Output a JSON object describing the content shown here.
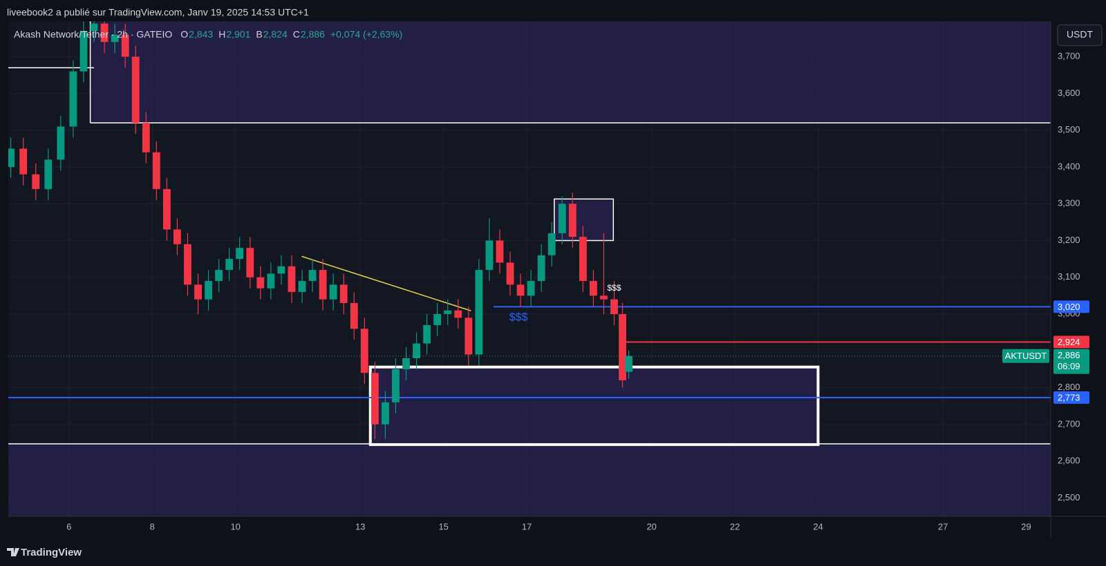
{
  "publisher": "liveebook2 a publié sur TradingView.com, Janv 19, 2025 14:53 UTC+1",
  "footer": "TradingView",
  "currency_button": "USDT",
  "chart_data": {
    "type": "candlestick",
    "title": "Akash Network/Tether · 2h · GATEIO",
    "ohlc": [
      {
        "label": "O",
        "value": "2,843"
      },
      {
        "label": "H",
        "value": "2,901"
      },
      {
        "label": "B",
        "value": "2,824"
      },
      {
        "label": "C",
        "value": "2,886"
      }
    ],
    "change": "+0,074 (+2,63%)",
    "up_color": "#089981",
    "down_color": "#f23645",
    "x": [
      4.6,
      4.9,
      5.2,
      5.5,
      5.8,
      6.1,
      6.35,
      6.6,
      6.85,
      7.1,
      7.35,
      7.6,
      7.85,
      8.1,
      8.35,
      8.6,
      8.85,
      9.1,
      9.35,
      9.6,
      9.85,
      10.1,
      10.35,
      10.6,
      10.85,
      11.1,
      11.35,
      11.6,
      11.85,
      12.1,
      12.35,
      12.6,
      12.85,
      13.1,
      13.35,
      13.6,
      13.85,
      14.1,
      14.35,
      14.6,
      14.85,
      15.1,
      15.35,
      15.6,
      15.85,
      16.1,
      16.35,
      16.6,
      16.85,
      17.1,
      17.35,
      17.6,
      17.85,
      18.1,
      18.35,
      18.6,
      18.85,
      19.1,
      19.3,
      19.45
    ],
    "open": [
      3.4,
      3.45,
      3.38,
      3.34,
      3.42,
      3.51,
      3.66,
      3.77,
      3.79,
      3.74,
      3.76,
      3.7,
      3.52,
      3.44,
      3.34,
      3.23,
      3.19,
      3.08,
      3.04,
      3.09,
      3.12,
      3.15,
      3.18,
      3.1,
      3.07,
      3.11,
      3.13,
      3.06,
      3.09,
      3.12,
      3.04,
      3.08,
      3.03,
      2.96,
      2.84,
      2.7,
      2.76,
      2.85,
      2.88,
      2.92,
      2.97,
      3.0,
      3.01,
      2.99,
      2.89,
      3.12,
      3.2,
      3.14,
      3.08,
      3.05,
      3.09,
      3.16,
      3.22,
      3.3,
      3.21,
      3.09,
      3.05,
      3.04,
      3.0,
      2.843
    ],
    "high": [
      3.48,
      3.48,
      3.41,
      3.45,
      3.54,
      3.69,
      3.8,
      3.82,
      3.82,
      3.79,
      3.79,
      3.73,
      3.55,
      3.47,
      3.37,
      3.26,
      3.22,
      3.11,
      3.12,
      3.15,
      3.18,
      3.21,
      3.21,
      3.13,
      3.14,
      3.16,
      3.16,
      3.12,
      3.15,
      3.15,
      3.11,
      3.11,
      3.06,
      2.99,
      2.87,
      2.79,
      2.88,
      2.91,
      2.95,
      3.0,
      3.03,
      3.04,
      3.04,
      3.02,
      3.15,
      3.26,
      3.23,
      3.17,
      3.11,
      3.12,
      3.19,
      3.25,
      3.32,
      3.33,
      3.24,
      3.12,
      3.22,
      3.09,
      3.03,
      2.901
    ],
    "low": [
      3.37,
      3.35,
      3.31,
      3.31,
      3.39,
      3.48,
      3.63,
      3.74,
      3.71,
      3.71,
      3.67,
      3.49,
      3.41,
      3.31,
      3.2,
      3.16,
      3.05,
      3.0,
      3.01,
      3.06,
      3.09,
      3.12,
      3.07,
      3.04,
      3.04,
      3.08,
      3.03,
      3.03,
      3.06,
      3.01,
      3.01,
      3.0,
      2.93,
      2.81,
      2.66,
      2.66,
      2.73,
      2.82,
      2.85,
      2.89,
      2.94,
      2.97,
      2.96,
      2.86,
      2.86,
      3.09,
      3.11,
      3.05,
      3.02,
      3.02,
      3.06,
      3.13,
      3.19,
      3.18,
      3.06,
      3.02,
      3.0,
      2.97,
      2.8,
      2.824
    ],
    "close": [
      3.45,
      3.38,
      3.34,
      3.42,
      3.51,
      3.66,
      3.77,
      3.79,
      3.74,
      3.76,
      3.7,
      3.52,
      3.44,
      3.34,
      3.23,
      3.19,
      3.08,
      3.04,
      3.09,
      3.12,
      3.15,
      3.18,
      3.1,
      3.07,
      3.11,
      3.13,
      3.06,
      3.09,
      3.12,
      3.04,
      3.08,
      3.03,
      2.96,
      2.84,
      2.7,
      2.76,
      2.85,
      2.88,
      2.92,
      2.97,
      3.0,
      3.01,
      2.99,
      2.89,
      3.12,
      3.2,
      3.14,
      3.08,
      3.05,
      3.09,
      3.16,
      3.22,
      3.3,
      3.21,
      3.09,
      3.05,
      3.04,
      3.0,
      2.82,
      2.886
    ],
    "xlim": [
      4.54,
      29.59
    ],
    "xticks": [
      6,
      8,
      10,
      13,
      15,
      17,
      20,
      22,
      24,
      27,
      29
    ],
    "ylim": [
      2.45,
      3.796
    ],
    "yticks": [
      {
        "value": 2.5,
        "label": "2,500"
      },
      {
        "value": 2.6,
        "label": "2,600"
      },
      {
        "value": 2.7,
        "label": "2,700"
      },
      {
        "value": 2.8,
        "label": "2,800"
      },
      {
        "value": 3.0,
        "label": "3,000"
      },
      {
        "value": 3.1,
        "label": "3,100"
      },
      {
        "value": 3.2,
        "label": "3,200"
      },
      {
        "value": 3.3,
        "label": "3,300"
      },
      {
        "value": 3.4,
        "label": "3,400"
      },
      {
        "value": 3.5,
        "label": "3,500"
      },
      {
        "value": 3.6,
        "label": "3,600"
      },
      {
        "value": 3.7,
        "label": "3,700"
      }
    ],
    "grid": true,
    "zones": [
      {
        "x0": 6.51,
        "y0": 3.52,
        "color": "#2a2250"
      },
      {
        "y1": 2.647,
        "color": "#2a2250"
      }
    ],
    "boxes": [
      {
        "x0": 13.24,
        "x1": 24.0,
        "y0": 2.645,
        "y1": 2.856,
        "color": "#ffffff",
        "fill": "#2a2250"
      },
      {
        "x0": 17.66,
        "x1": 19.08,
        "y0": 3.2,
        "y1": 3.313,
        "color": "#ffffff",
        "fill": "#2a2250"
      }
    ],
    "segments": [
      {
        "x1": 6.6,
        "y0": 3.67,
        "y1": 3.67,
        "color": "#ffffff"
      },
      {
        "x0": 11.59,
        "y0": 3.157,
        "x1": 15.66,
        "y1": 3.009,
        "color": "#e8d44d"
      }
    ],
    "levels": [
      {
        "value": 3.02,
        "label": "3,020",
        "from": 16.2,
        "color": "#2962ff"
      },
      {
        "value": 2.924,
        "label": "2,924",
        "from": 19.3,
        "color": "#f23645"
      },
      {
        "value": 2.773,
        "label": "2,773",
        "color": "#2962ff"
      }
    ],
    "annotations": [
      {
        "text": "$$$",
        "x": 16.8,
        "y": 2.99,
        "color": "#2962ff"
      },
      {
        "text": "$$$",
        "x": 19.1,
        "y": 3.07,
        "color": "#ffffff"
      }
    ],
    "last_price": {
      "symbol": "AKTUSDT",
      "value": 2.886,
      "label": "2,886",
      "countdown": "06:09",
      "color": "#089981"
    }
  }
}
